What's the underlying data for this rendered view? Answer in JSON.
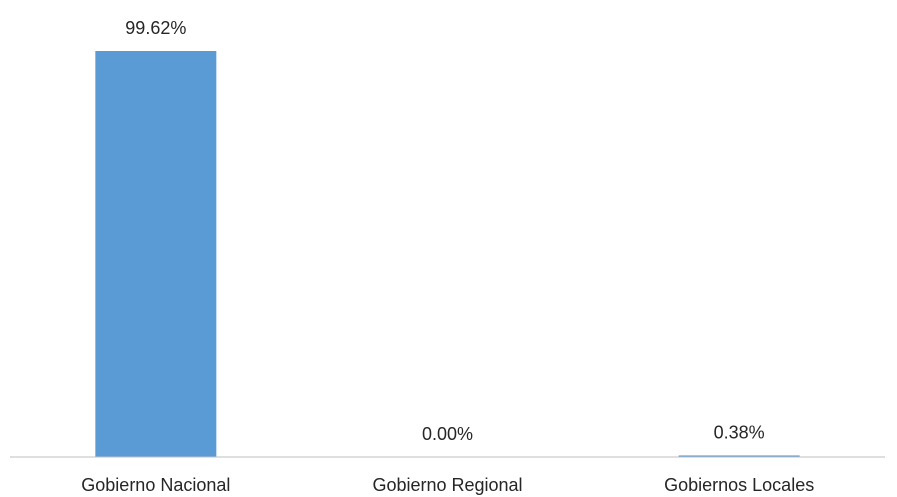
{
  "chart_data": {
    "type": "bar",
    "categories": [
      "Gobierno Nacional",
      "Gobierno Regional",
      "Gobiernos Locales"
    ],
    "values": [
      99.62,
      0.0,
      0.38
    ],
    "data_labels": [
      "99.62%",
      "0.00%",
      "0.38%"
    ],
    "unit": "%",
    "title": "",
    "xlabel": "",
    "ylabel": "",
    "ylim": [
      0,
      100
    ],
    "grid": false,
    "legend": "none",
    "bar_color": "#5B9BD5",
    "axis_color": "#BFBFBF",
    "text_color": "#262626"
  }
}
